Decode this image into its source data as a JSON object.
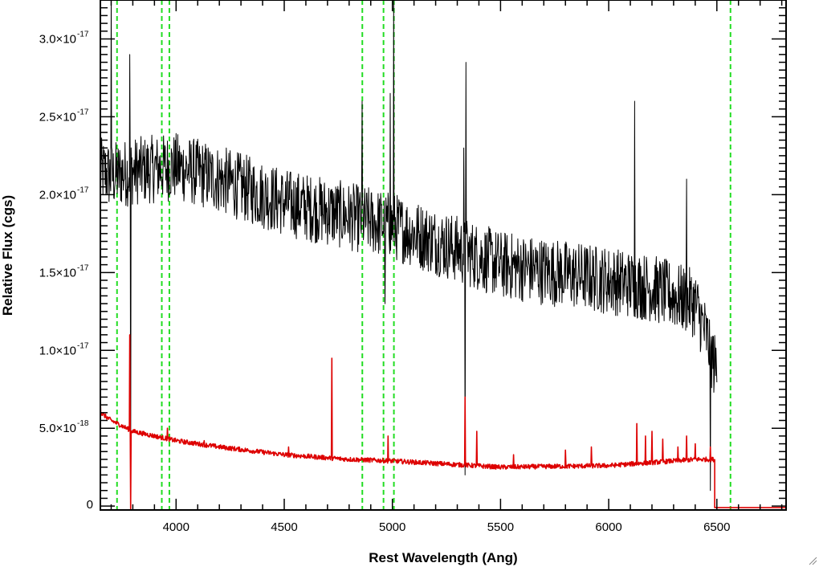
{
  "chart_data": {
    "type": "line",
    "xlabel": "Rest Wavelength (Ang)",
    "ylabel": "Relative Flux (cgs)",
    "xlim": [
      3650,
      6820
    ],
    "ylim": [
      -2.5e-19,
      3.25e-17
    ],
    "x_ticks": [
      {
        "value": 4000,
        "label": "4000"
      },
      {
        "value": 4500,
        "label": "4500"
      },
      {
        "value": 5000,
        "label": "5000"
      },
      {
        "value": 5500,
        "label": "5500"
      },
      {
        "value": 6000,
        "label": "6000"
      },
      {
        "value": 6500,
        "label": "6500"
      }
    ],
    "y_ticks": [
      {
        "value": 0,
        "mantissa": "0",
        "exponent": ""
      },
      {
        "value": 5e-18,
        "mantissa": "5.0×10",
        "exponent": "-18"
      },
      {
        "value": 1e-17,
        "mantissa": "1.0×10",
        "exponent": "-17"
      },
      {
        "value": 1.5e-17,
        "mantissa": "1.5×10",
        "exponent": "-17"
      },
      {
        "value": 2e-17,
        "mantissa": "2.0×10",
        "exponent": "-17"
      },
      {
        "value": 2.5e-17,
        "mantissa": "2.5×10",
        "exponent": "-17"
      },
      {
        "value": 3e-17,
        "mantissa": "3.0×10",
        "exponent": "-17"
      }
    ],
    "grid": false,
    "reference_lines": {
      "color": "#22dd22",
      "style": "dashed",
      "x": [
        3727,
        3934,
        3969,
        4861,
        4959,
        5007,
        6563
      ]
    },
    "series": [
      {
        "color": "#000000",
        "data_end": 6500,
        "trend": [
          [
            3650,
            2.15e-17
          ],
          [
            3700,
            2.12e-17
          ],
          [
            3800,
            2.15e-17
          ],
          [
            4000,
            2.18e-17
          ],
          [
            4200,
            2.1e-17
          ],
          [
            4500,
            1.95e-17
          ],
          [
            5000,
            1.8e-17
          ],
          [
            5500,
            1.55e-17
          ],
          [
            6000,
            1.45e-17
          ],
          [
            6200,
            1.4e-17
          ],
          [
            6400,
            1.3e-17
          ],
          [
            6450,
            1.1e-17
          ],
          [
            6490,
            9e-18
          ]
        ],
        "noise": 2.2e-18,
        "spikes": [
          [
            3700,
            3.3e-17
          ],
          [
            3785,
            2.9e-17
          ],
          [
            3790,
            -2e-19
          ],
          [
            4860,
            2.6e-17
          ],
          [
            4965,
            1.3e-17
          ],
          [
            4990,
            2.65e-17
          ],
          [
            5005,
            3.3e-17
          ],
          [
            5330,
            2.3e-17
          ],
          [
            5335,
            2e-18
          ],
          [
            5340,
            2.85e-17
          ],
          [
            6120,
            2.6e-17
          ],
          [
            6360,
            2.1e-17
          ],
          [
            6470,
            1e-18
          ]
        ]
      },
      {
        "color": "#dd0000",
        "data_end": 6490,
        "tail_end": 6820,
        "tail_value": -1e-19,
        "trend": [
          [
            3650,
            6e-18
          ],
          [
            3700,
            5.5e-18
          ],
          [
            3800,
            4.8e-18
          ],
          [
            4000,
            4.2e-18
          ],
          [
            4200,
            3.8e-18
          ],
          [
            4500,
            3.3e-18
          ],
          [
            4800,
            3e-18
          ],
          [
            5000,
            2.9e-18
          ],
          [
            5500,
            2.5e-18
          ],
          [
            6000,
            2.6e-18
          ],
          [
            6200,
            2.8e-18
          ],
          [
            6400,
            3e-18
          ],
          [
            6490,
            3e-18
          ]
        ],
        "noise": 1.5e-19,
        "spikes": [
          [
            3650,
            7e-18
          ],
          [
            3785,
            1.1e-17
          ],
          [
            3790,
            -2e-19
          ],
          [
            3960,
            5e-18
          ],
          [
            4130,
            4.2e-18
          ],
          [
            4390,
            3.6e-18
          ],
          [
            4520,
            3.8e-18
          ],
          [
            4720,
            9.5e-18
          ],
          [
            4980,
            4.5e-18
          ],
          [
            5335,
            7e-18
          ],
          [
            5390,
            4.8e-18
          ],
          [
            5560,
            3.3e-18
          ],
          [
            5800,
            3.6e-18
          ],
          [
            5920,
            3.8e-18
          ],
          [
            6130,
            5.3e-18
          ],
          [
            6170,
            4.5e-18
          ],
          [
            6200,
            4.8e-18
          ],
          [
            6250,
            4.3e-18
          ],
          [
            6320,
            3.8e-18
          ],
          [
            6360,
            4.5e-18
          ],
          [
            6400,
            4e-18
          ],
          [
            6470,
            3.8e-18
          ]
        ]
      }
    ]
  }
}
